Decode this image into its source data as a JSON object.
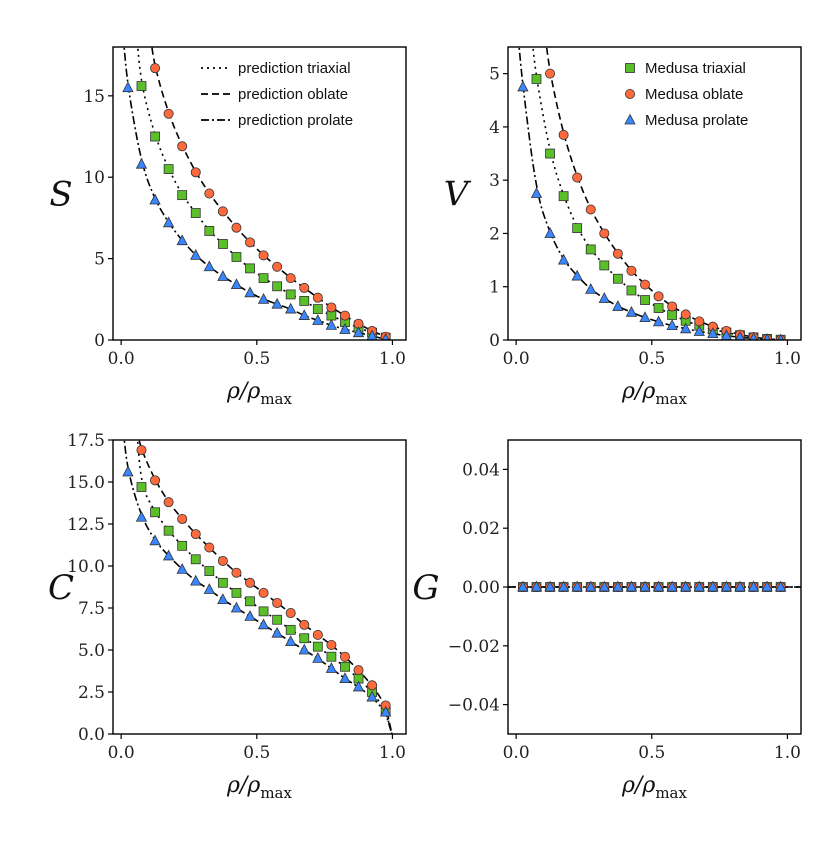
{
  "figure": {
    "xlabel": "ρ/ρ",
    "xlabel_sub": "max",
    "colors": {
      "triaxial": "#5bbf2a",
      "oblate": "#ff6a3d",
      "prolate": "#3a86ff",
      "edge": "#333333"
    }
  },
  "chart_data": [
    {
      "id": "S",
      "type": "line+scatter",
      "ylabel": "S",
      "xlim": [
        -0.03,
        1.05
      ],
      "ylim": [
        0,
        18
      ],
      "xticks": [
        0.0,
        0.5,
        1.0
      ],
      "xtick_labels": [
        "0.0",
        "0.5",
        "1.0"
      ],
      "yticks": [
        0,
        5,
        10,
        15
      ],
      "ytick_labels": [
        "0",
        "5",
        "10",
        "15"
      ],
      "legend": {
        "position": "top-right",
        "entries": [
          {
            "style": "dotted",
            "label": "prediction  triaxial"
          },
          {
            "style": "dashed",
            "label": "prediction  oblate"
          },
          {
            "style": "dashdot",
            "label": "prediction  prolate"
          }
        ]
      },
      "series": [
        {
          "name": "Medusa triaxial",
          "marker": "square",
          "line": "dotted",
          "x": [
            0.075,
            0.125,
            0.175,
            0.225,
            0.275,
            0.325,
            0.375,
            0.425,
            0.475,
            0.525,
            0.575,
            0.625,
            0.675,
            0.725,
            0.775,
            0.825,
            0.875,
            0.925,
            0.975
          ],
          "y": [
            15.6,
            12.5,
            10.5,
            8.9,
            7.8,
            6.7,
            5.9,
            5.1,
            4.4,
            3.8,
            3.3,
            2.8,
            2.4,
            1.9,
            1.5,
            1.1,
            0.75,
            0.45,
            0.15
          ]
        },
        {
          "name": "Medusa oblate",
          "marker": "circle",
          "line": "dashed",
          "x": [
            0.125,
            0.175,
            0.225,
            0.275,
            0.325,
            0.375,
            0.425,
            0.475,
            0.525,
            0.575,
            0.625,
            0.675,
            0.725,
            0.775,
            0.825,
            0.875,
            0.925,
            0.975
          ],
          "y": [
            16.7,
            13.9,
            11.9,
            10.3,
            9.0,
            7.9,
            6.9,
            6.0,
            5.2,
            4.5,
            3.8,
            3.2,
            2.6,
            2.0,
            1.5,
            1.0,
            0.55,
            0.2
          ]
        },
        {
          "name": "Medusa prolate",
          "marker": "triangle",
          "line": "dashdot",
          "x": [
            0.025,
            0.075,
            0.125,
            0.175,
            0.225,
            0.275,
            0.325,
            0.375,
            0.425,
            0.475,
            0.525,
            0.575,
            0.625,
            0.675,
            0.725,
            0.775,
            0.825,
            0.875,
            0.925,
            0.975
          ],
          "y": [
            15.5,
            10.8,
            8.6,
            7.2,
            6.1,
            5.2,
            4.5,
            3.9,
            3.4,
            2.9,
            2.5,
            2.2,
            1.9,
            1.5,
            1.2,
            0.9,
            0.65,
            0.45,
            0.25,
            0.05
          ]
        }
      ]
    },
    {
      "id": "V",
      "type": "line+scatter",
      "ylabel": "V",
      "xlim": [
        -0.03,
        1.05
      ],
      "ylim": [
        0,
        5.5
      ],
      "xticks": [
        0.0,
        0.5,
        1.0
      ],
      "xtick_labels": [
        "0.0",
        "0.5",
        "1.0"
      ],
      "yticks": [
        0,
        1,
        2,
        3,
        4,
        5
      ],
      "ytick_labels": [
        "0",
        "1",
        "2",
        "3",
        "4",
        "5"
      ],
      "legend": {
        "position": "top-right",
        "entries": [
          {
            "marker": "square",
            "label": "Medusa triaxial"
          },
          {
            "marker": "circle",
            "label": "Medusa oblate"
          },
          {
            "marker": "triangle",
            "label": "Medusa prolate"
          }
        ]
      },
      "series": [
        {
          "name": "Medusa triaxial",
          "marker": "square",
          "line": "dotted",
          "x": [
            0.075,
            0.125,
            0.175,
            0.225,
            0.275,
            0.325,
            0.375,
            0.425,
            0.475,
            0.525,
            0.575,
            0.625,
            0.675,
            0.725,
            0.775,
            0.825,
            0.875,
            0.925,
            0.975
          ],
          "y": [
            4.9,
            3.5,
            2.7,
            2.1,
            1.7,
            1.4,
            1.15,
            0.93,
            0.75,
            0.6,
            0.47,
            0.36,
            0.27,
            0.2,
            0.14,
            0.09,
            0.05,
            0.02,
            0.005
          ]
        },
        {
          "name": "Medusa oblate",
          "marker": "circle",
          "line": "dashed",
          "x": [
            0.125,
            0.175,
            0.225,
            0.275,
            0.325,
            0.375,
            0.425,
            0.475,
            0.525,
            0.575,
            0.625,
            0.675,
            0.725,
            0.775,
            0.825,
            0.875,
            0.925,
            0.975
          ],
          "y": [
            5.0,
            3.85,
            3.05,
            2.45,
            2.0,
            1.62,
            1.3,
            1.04,
            0.82,
            0.63,
            0.48,
            0.35,
            0.25,
            0.17,
            0.1,
            0.055,
            0.02,
            0.005
          ]
        },
        {
          "name": "Medusa prolate",
          "marker": "triangle",
          "line": "dashdot",
          "x": [
            0.025,
            0.075,
            0.125,
            0.175,
            0.225,
            0.275,
            0.325,
            0.375,
            0.425,
            0.475,
            0.525,
            0.575,
            0.625,
            0.675,
            0.725,
            0.775,
            0.825,
            0.875,
            0.925,
            0.975
          ],
          "y": [
            4.75,
            2.75,
            2.0,
            1.5,
            1.2,
            0.95,
            0.78,
            0.63,
            0.52,
            0.42,
            0.34,
            0.27,
            0.21,
            0.16,
            0.12,
            0.08,
            0.05,
            0.03,
            0.01,
            0.002
          ]
        }
      ]
    },
    {
      "id": "C",
      "type": "line+scatter",
      "ylabel": "C",
      "xlim": [
        -0.03,
        1.05
      ],
      "ylim": [
        0,
        17.5
      ],
      "xticks": [
        0.0,
        0.5,
        1.0
      ],
      "xtick_labels": [
        "0.0",
        "0.5",
        "1.0"
      ],
      "yticks": [
        0,
        2.5,
        5,
        7.5,
        10,
        12.5,
        15,
        17.5
      ],
      "ytick_labels": [
        "0.0",
        "2.5",
        "5.0",
        "7.5",
        "10.0",
        "12.5",
        "15.0",
        "17.5"
      ],
      "series": [
        {
          "name": "Medusa triaxial",
          "marker": "square",
          "line": "dotted",
          "x": [
            0.075,
            0.125,
            0.175,
            0.225,
            0.275,
            0.325,
            0.375,
            0.425,
            0.475,
            0.525,
            0.575,
            0.625,
            0.675,
            0.725,
            0.775,
            0.825,
            0.875,
            0.925,
            0.975
          ],
          "y": [
            14.7,
            13.2,
            12.1,
            11.2,
            10.4,
            9.7,
            9.0,
            8.4,
            7.9,
            7.3,
            6.8,
            6.2,
            5.7,
            5.2,
            4.6,
            4.0,
            3.3,
            2.5,
            1.4
          ]
        },
        {
          "name": "Medusa oblate",
          "marker": "circle",
          "line": "dashed",
          "x": [
            0.075,
            0.125,
            0.175,
            0.225,
            0.275,
            0.325,
            0.375,
            0.425,
            0.475,
            0.525,
            0.575,
            0.625,
            0.675,
            0.725,
            0.775,
            0.825,
            0.875,
            0.925,
            0.975
          ],
          "y": [
            16.9,
            15.1,
            13.8,
            12.8,
            11.9,
            11.1,
            10.3,
            9.6,
            9.0,
            8.4,
            7.8,
            7.2,
            6.5,
            5.9,
            5.3,
            4.6,
            3.8,
            2.9,
            1.7
          ]
        },
        {
          "name": "Medusa prolate",
          "marker": "triangle",
          "line": "dashdot",
          "x": [
            0.025,
            0.075,
            0.125,
            0.175,
            0.225,
            0.275,
            0.325,
            0.375,
            0.425,
            0.475,
            0.525,
            0.575,
            0.625,
            0.675,
            0.725,
            0.775,
            0.825,
            0.875,
            0.925,
            0.975
          ],
          "y": [
            15.6,
            12.9,
            11.5,
            10.6,
            9.8,
            9.1,
            8.6,
            8.0,
            7.5,
            7.0,
            6.5,
            6.0,
            5.5,
            5.0,
            4.5,
            3.9,
            3.3,
            2.8,
            2.2,
            1.3
          ]
        }
      ]
    },
    {
      "id": "G",
      "type": "line+scatter",
      "ylabel": "G",
      "xlim": [
        -0.03,
        1.05
      ],
      "ylim": [
        -0.05,
        0.05
      ],
      "xticks": [
        0.0,
        0.5,
        1.0
      ],
      "xtick_labels": [
        "0.0",
        "0.5",
        "1.0"
      ],
      "yticks": [
        -0.04,
        -0.02,
        0.0,
        0.02,
        0.04
      ],
      "ytick_labels": [
        "−0.04",
        "−0.02",
        "0.00",
        "0.02",
        "0.04"
      ],
      "series": [
        {
          "name": "Medusa triaxial",
          "marker": "square",
          "line": "dotted",
          "x": [
            0.025,
            0.075,
            0.125,
            0.175,
            0.225,
            0.275,
            0.325,
            0.375,
            0.425,
            0.475,
            0.525,
            0.575,
            0.625,
            0.675,
            0.725,
            0.775,
            0.825,
            0.875,
            0.925,
            0.975
          ],
          "y": [
            0,
            0,
            0,
            0,
            0,
            0,
            0,
            0,
            0,
            0,
            0,
            0,
            0,
            0,
            0,
            0,
            0,
            0,
            0,
            0
          ]
        },
        {
          "name": "Medusa oblate",
          "marker": "circle",
          "line": "dashed",
          "x": [
            0.025,
            0.075,
            0.125,
            0.175,
            0.225,
            0.275,
            0.325,
            0.375,
            0.425,
            0.475,
            0.525,
            0.575,
            0.625,
            0.675,
            0.725,
            0.775,
            0.825,
            0.875,
            0.925,
            0.975
          ],
          "y": [
            0,
            0,
            0,
            0,
            0,
            0,
            0,
            0,
            0,
            0,
            0,
            0,
            0,
            0,
            0,
            0,
            0,
            0,
            0,
            0
          ]
        },
        {
          "name": "Medusa prolate",
          "marker": "triangle",
          "line": "dashdot",
          "x": [
            0.025,
            0.075,
            0.125,
            0.175,
            0.225,
            0.275,
            0.325,
            0.375,
            0.425,
            0.475,
            0.525,
            0.575,
            0.625,
            0.675,
            0.725,
            0.775,
            0.825,
            0.875,
            0.925,
            0.975
          ],
          "y": [
            0,
            0,
            0,
            0,
            0,
            0,
            0,
            0,
            0,
            0,
            0,
            0,
            0,
            0,
            0,
            0,
            0,
            0,
            0,
            0
          ]
        }
      ]
    }
  ]
}
